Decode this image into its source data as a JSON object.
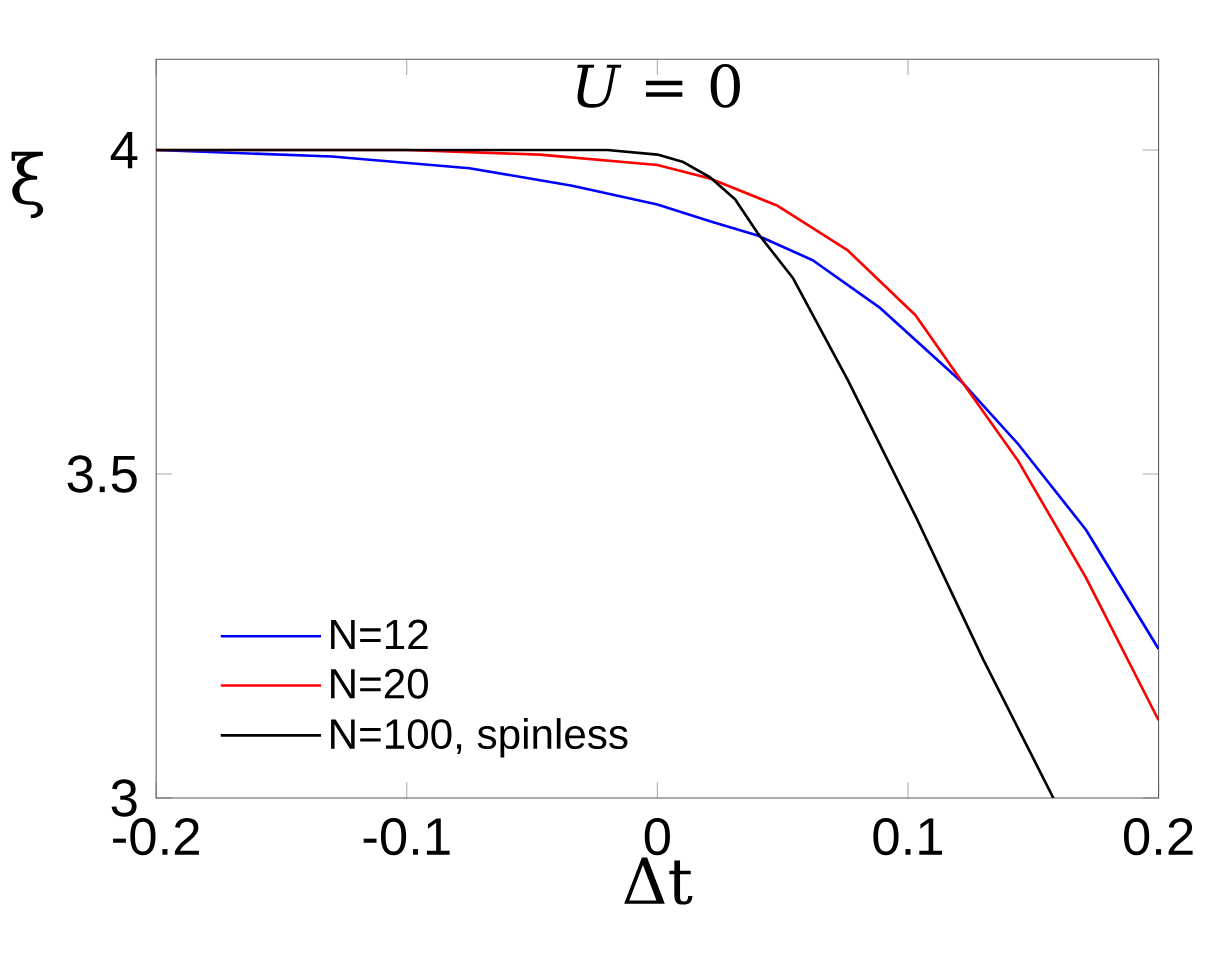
{
  "chart_data": {
    "type": "line",
    "title": "*U* = 0",
    "xlabel": "Δt",
    "ylabel": "ξ",
    "x": [
      -0.2,
      -0.13,
      -0.1,
      -0.075,
      -0.047,
      -0.034,
      -0.02,
      0,
      0.01,
      0.021,
      0.031,
      0.04,
      0.048,
      0.054,
      0.062,
      0.076,
      0.089,
      0.103,
      0.122,
      0.13,
      0.144,
      0.158,
      0.171,
      0.2
    ],
    "series": [
      {
        "name": "N=12",
        "color": "#0000ff",
        "values": [
          4.0,
          3.99,
          null,
          3.972,
          null,
          3.945,
          null,
          3.916,
          null,
          3.89,
          null,
          3.868,
          null,
          null,
          3.83,
          null,
          3.756,
          null,
          3.64,
          null,
          3.546,
          null,
          3.414,
          3.23
        ]
      },
      {
        "name": "N=20",
        "color": "#ff0000",
        "values": [
          4.0,
          null,
          4.0,
          null,
          3.993,
          null,
          null,
          3.977,
          null,
          3.956,
          null,
          null,
          3.914,
          null,
          null,
          3.845,
          null,
          3.745,
          3.64,
          null,
          3.52,
          null,
          3.34,
          3.12
        ]
      },
      {
        "name": "N=100, spinless",
        "color": "#000000",
        "values": [
          4.0,
          null,
          null,
          null,
          null,
          null,
          4.0,
          3.993,
          3.982,
          3.958,
          3.924,
          3.872,
          null,
          3.803,
          null,
          3.645,
          null,
          3.435,
          null,
          3.214,
          null,
          3.0,
          null,
          null
        ]
      }
    ],
    "xlim": [
      -0.2,
      0.2
    ],
    "ylim": [
      3,
      4.14
    ],
    "xticks": [
      -0.2,
      -0.1,
      0,
      0.1,
      0.2
    ],
    "yticks": [
      3,
      3.5,
      4
    ],
    "grid": false,
    "legend": "bottom left",
    "marker": "none",
    "line_style": "solid"
  }
}
